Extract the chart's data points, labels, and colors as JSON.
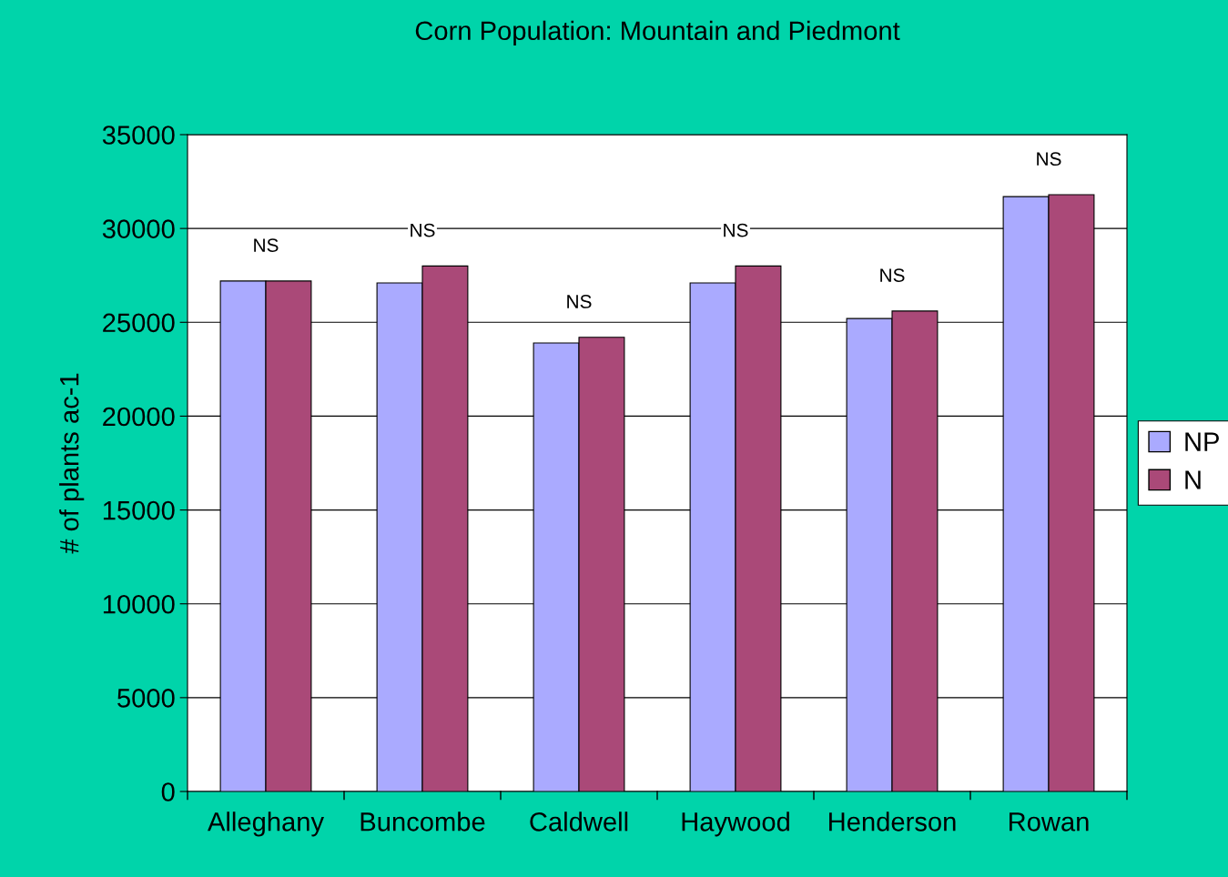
{
  "chart_data": {
    "type": "bar",
    "title": "Corn Population: Mountain and Piedmont",
    "ylabel": "# of plants ac-1",
    "categories": [
      "Alleghany",
      "Buncombe",
      "Caldwell",
      "Haywood",
      "Henderson",
      "Rowan"
    ],
    "series": [
      {
        "name": "NP",
        "color": "#aaaaff",
        "values": [
          27200,
          27100,
          23900,
          27100,
          25200,
          31700
        ]
      },
      {
        "name": "N",
        "color": "#aa4978",
        "values": [
          27200,
          28000,
          24200,
          28000,
          25600,
          31800
        ]
      }
    ],
    "annotations": [
      "NS",
      "NS",
      "NS",
      "NS",
      "NS",
      "NS"
    ],
    "ylim": [
      0,
      35000
    ],
    "yticks": [
      0,
      5000,
      10000,
      15000,
      20000,
      25000,
      30000,
      35000
    ],
    "grid": "y",
    "legend": "right"
  }
}
